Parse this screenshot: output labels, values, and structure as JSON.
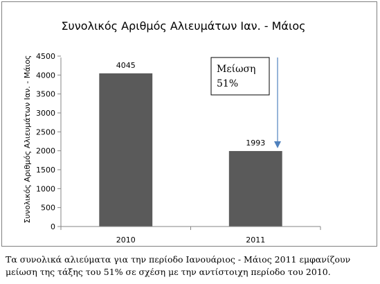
{
  "chart_data": {
    "type": "bar",
    "title": "Συνολικός Αριθμός Αλιευμάτων Ιαν. - Μάιος",
    "xlabel": "",
    "ylabel": "Συνολικός Αριθμός Αλιευμάτων Ιαν. - Μάιος",
    "categories": [
      "2010",
      "2011"
    ],
    "values": [
      4045,
      1993
    ],
    "data_labels": [
      "4045",
      "1993"
    ],
    "ylim": [
      0,
      4500
    ],
    "yticks": [
      0,
      500,
      1000,
      1500,
      2000,
      2500,
      3000,
      3500,
      4000,
      4500
    ],
    "ytick_labels": [
      "0",
      "500",
      "1000",
      "1500",
      "2000",
      "2500",
      "3000",
      "3500",
      "4000",
      "4500"
    ],
    "grid": false,
    "legend": "none",
    "bar_color": "#5a5a5a",
    "annotation": {
      "lines": [
        "Μείωση",
        "51%"
      ],
      "arrow_to_category": "2011"
    }
  },
  "caption": {
    "line1": "Τα συνολικά αλιεύματα για την περίοδο Ιανουάριος - Μάιος 2011 εμφανίζουν",
    "line2": "μείωση της τάξης του 51% σε σχέση με την αντίστοιχη περίοδο του 2010."
  }
}
